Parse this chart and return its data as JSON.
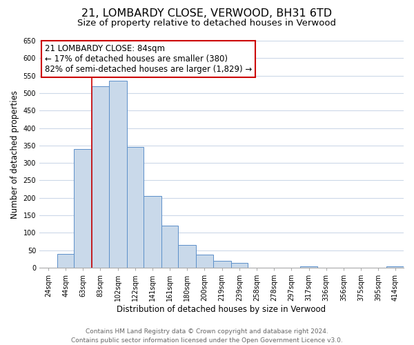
{
  "title": "21, LOMBARDY CLOSE, VERWOOD, BH31 6TD",
  "subtitle": "Size of property relative to detached houses in Verwood",
  "xlabel": "Distribution of detached houses by size in Verwood",
  "ylabel": "Number of detached properties",
  "bin_edges": [
    24,
    44,
    63,
    83,
    102,
    122,
    141,
    161,
    180,
    200,
    219,
    239,
    258,
    278,
    297,
    317,
    336,
    356,
    375,
    395,
    414,
    433
  ],
  "bar_heights": [
    0,
    40,
    340,
    520,
    535,
    345,
    205,
    120,
    65,
    38,
    20,
    13,
    0,
    0,
    0,
    5,
    0,
    0,
    0,
    0,
    5
  ],
  "tick_labels": [
    "24sqm",
    "44sqm",
    "63sqm",
    "83sqm",
    "102sqm",
    "122sqm",
    "141sqm",
    "161sqm",
    "180sqm",
    "200sqm",
    "219sqm",
    "239sqm",
    "258sqm",
    "278sqm",
    "297sqm",
    "317sqm",
    "336sqm",
    "356sqm",
    "375sqm",
    "395sqm",
    "414sqm"
  ],
  "bar_color": "#c9d9ea",
  "bar_edge_color": "#5b8fc9",
  "vline_x": 83,
  "vline_color": "#cc0000",
  "annotation_title": "21 LOMBARDY CLOSE: 84sqm",
  "annotation_line1": "← 17% of detached houses are smaller (380)",
  "annotation_line2": "82% of semi-detached houses are larger (1,829) →",
  "annotation_box_edge": "#cc0000",
  "ylim": [
    0,
    650
  ],
  "yticks": [
    0,
    50,
    100,
    150,
    200,
    250,
    300,
    350,
    400,
    450,
    500,
    550,
    600,
    650
  ],
  "footer_line1": "Contains HM Land Registry data © Crown copyright and database right 2024.",
  "footer_line2": "Contains public sector information licensed under the Open Government Licence v3.0.",
  "title_fontsize": 11.5,
  "subtitle_fontsize": 9.5,
  "axis_label_fontsize": 8.5,
  "tick_fontsize": 7,
  "annotation_fontsize": 8.5,
  "footer_fontsize": 6.5,
  "background_color": "#ffffff",
  "grid_color": "#ccd8e8"
}
